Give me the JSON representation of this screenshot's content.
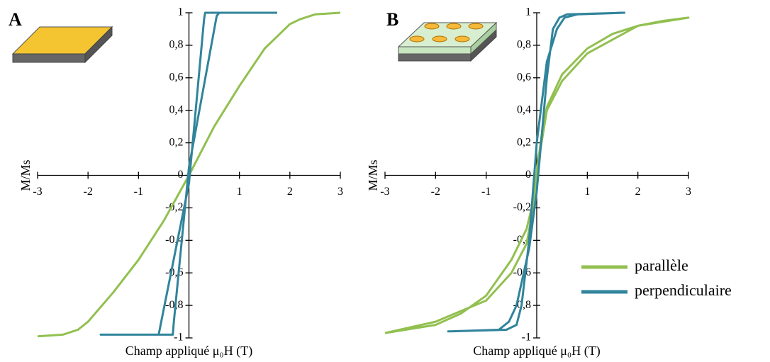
{
  "chart_data": [
    {
      "type": "line",
      "label": "A",
      "ylabel": "M/Ms",
      "xlabel": "Champ appliqué μ₀H (T)",
      "xlim": [
        -3,
        3
      ],
      "ylim": [
        -1,
        1
      ],
      "xticks": [
        -3,
        -2,
        -1,
        1,
        2,
        3
      ],
      "yticks": [
        -1,
        {
          "value": -0.8,
          "label": "-0,8"
        },
        {
          "value": -0.6,
          "label": "-0,6"
        },
        {
          "value": -0.4,
          "label": "-0,4"
        },
        {
          "value": -0.2,
          "label": "-0,2"
        },
        0,
        {
          "value": 0.2,
          "label": "0,2"
        },
        {
          "value": 0.4,
          "label": "0,4"
        },
        {
          "value": 0.6,
          "label": "0,6"
        },
        {
          "value": 0.8,
          "label": "0,8"
        },
        1
      ],
      "series": [
        {
          "color": "#92c050",
          "x": [
            -3,
            -2.5,
            -2.2,
            -2,
            -1.5,
            -1,
            -0.5,
            0,
            0.5,
            1,
            1.5,
            2,
            2.2,
            2.5,
            3
          ],
          "values": [
            -0.99,
            -0.98,
            -0.95,
            -0.9,
            -0.72,
            -0.52,
            -0.28,
            0,
            0.3,
            0.55,
            0.78,
            0.93,
            0.96,
            0.99,
            1
          ]
        },
        {
          "color": "#31849b",
          "x": [
            1.75,
            0.6,
            0.55,
            0,
            -0.3,
            -0.32,
            -1.75,
            -0.6,
            -0.55,
            0,
            0.3,
            0.32,
            1.75
          ],
          "values": [
            1,
            1,
            0.98,
            0.05,
            -0.9,
            -0.98,
            -0.98,
            -0.98,
            -0.9,
            -0.05,
            0.96,
            1,
            1
          ]
        }
      ]
    },
    {
      "type": "line",
      "label": "B",
      "ylabel": "M/Ms",
      "xlabel": "Champ appliqué μ₀H (T)",
      "xlim": [
        -3,
        3
      ],
      "ylim": [
        -1,
        1
      ],
      "legend": "lower right",
      "xticks": [
        -3,
        -2,
        -1,
        1,
        2,
        3
      ],
      "yticks": [
        -1,
        {
          "value": -0.8,
          "label": "-0,8"
        },
        {
          "value": -0.6,
          "label": "-0,6"
        },
        {
          "value": -0.4,
          "label": "-0,4"
        },
        {
          "value": -0.2,
          "label": "-0,2"
        },
        0,
        {
          "value": 0.2,
          "label": "0,2"
        },
        {
          "value": 0.4,
          "label": "0,4"
        },
        {
          "value": 0.6,
          "label": "0,6"
        },
        {
          "value": 0.8,
          "label": "0,8"
        },
        1
      ],
      "series": [
        {
          "name": "parallèle",
          "color": "#92c050",
          "x": [
            -3,
            -2,
            -1.5,
            -1,
            -0.5,
            -0.2,
            -0.1,
            0,
            0.1,
            0.2,
            0.5,
            1,
            1.5,
            2,
            2.5,
            3,
            2,
            1,
            0.5,
            0.2,
            0,
            -0.1,
            -0.2,
            -0.5,
            -1,
            -2,
            -3
          ],
          "values": [
            -0.97,
            -0.92,
            -0.85,
            -0.74,
            -0.52,
            -0.33,
            -0.2,
            0.02,
            0.25,
            0.42,
            0.62,
            0.78,
            0.87,
            0.92,
            0.95,
            0.97,
            0.92,
            0.75,
            0.58,
            0.4,
            0.02,
            -0.25,
            -0.42,
            -0.6,
            -0.77,
            -0.9,
            -0.97
          ]
        },
        {
          "name": "perpendiculaire",
          "color": "#31849b",
          "x": [
            1.75,
            0.8,
            0.55,
            0.4,
            0.2,
            0,
            -0.15,
            -0.3,
            -0.4,
            -0.6,
            -1.75,
            -0.75,
            -0.55,
            -0.4,
            -0.15,
            0,
            0.2,
            0.32,
            0.45,
            0.6,
            1.75
          ],
          "values": [
            1,
            0.99,
            0.97,
            0.9,
            0.7,
            0.2,
            -0.4,
            -0.8,
            -0.92,
            -0.95,
            -0.96,
            -0.95,
            -0.9,
            -0.8,
            -0.45,
            -0.1,
            0.6,
            0.9,
            0.97,
            0.99,
            1
          ]
        }
      ]
    }
  ]
}
